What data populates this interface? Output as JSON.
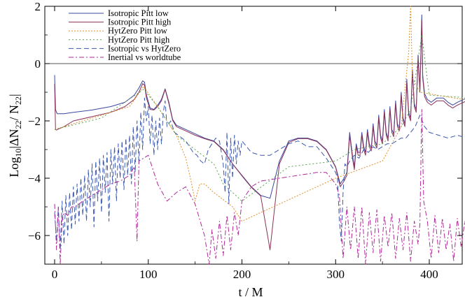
{
  "chart_data": {
    "type": "line",
    "xlabel": "t / M",
    "ylabel_parts": {
      "log": "Log",
      "log_sub": "10",
      "delta_n": "|ΔN",
      "num_sub": "22",
      "slash_n": "/ N",
      "den_sub": "22",
      "close": "|"
    },
    "xlim": [
      0,
      450
    ],
    "ylim": [
      -7,
      2
    ],
    "x_ticks": [
      0,
      100,
      200,
      300,
      400
    ],
    "x_tick_labels": [
      "0",
      "100",
      "200",
      "300",
      "400"
    ],
    "y_ticks": [
      2,
      0,
      -2,
      -4,
      -6
    ],
    "y_tick_labels": [
      "2",
      "0",
      "−2",
      "−4",
      "−6"
    ],
    "zero_line": true,
    "legend_position": "top-left",
    "series": [
      {
        "name": "Isotropic Pitt  low",
        "color": "#3a48a0",
        "dash": "solid",
        "x": [
          0,
          1,
          2,
          3,
          10,
          20,
          40,
          60,
          75,
          85,
          90,
          94,
          96,
          98,
          102,
          106,
          110,
          114,
          118,
          122,
          126,
          130,
          140,
          150,
          160,
          170,
          180,
          190,
          200,
          210,
          220,
          230,
          240,
          250,
          260,
          270,
          280,
          290,
          300,
          305,
          309,
          312,
          315,
          318,
          320,
          322,
          324,
          326,
          328,
          330,
          332,
          334,
          336,
          338,
          340,
          342,
          344,
          346,
          348,
          350,
          352,
          354,
          356,
          358,
          360,
          362,
          364,
          366,
          368,
          370,
          372,
          374,
          376,
          378,
          380,
          382,
          384,
          386,
          388,
          390,
          392,
          393,
          395,
          398,
          402,
          408,
          415,
          420,
          425,
          430,
          440,
          445
        ],
        "y": [
          -0.4,
          -1.6,
          -1.7,
          -1.75,
          -1.75,
          -1.7,
          -1.62,
          -1.5,
          -1.35,
          -1.1,
          -0.85,
          -0.6,
          -0.65,
          -1.1,
          -1.55,
          -1.6,
          -1.45,
          -1.25,
          -0.88,
          -1.35,
          -1.95,
          -2.15,
          -2.3,
          -2.45,
          -2.6,
          -2.7,
          -3.0,
          -3.5,
          -3.9,
          -4.3,
          -4.6,
          -4.7,
          -3.4,
          -2.7,
          -2.6,
          -2.6,
          -2.7,
          -3.0,
          -3.6,
          -4.2,
          -4.0,
          -3.8,
          -2.4,
          -3.2,
          -3.6,
          -2.8,
          -3.1,
          -3.1,
          -2.4,
          -2.9,
          -3.1,
          -2.3,
          -2.8,
          -2.95,
          -2.1,
          -2.7,
          -2.85,
          -1.8,
          -2.5,
          -2.7,
          -1.6,
          -2.4,
          -2.6,
          -1.5,
          -2.3,
          -2.45,
          -1.3,
          -2.1,
          -2.25,
          -1.0,
          -1.9,
          -2.1,
          -0.55,
          -1.7,
          -1.9,
          -0.2,
          -1.4,
          -1.6,
          0.3,
          -0.9,
          1.7,
          -0.4,
          -1.05,
          -1.25,
          -1.35,
          -1.2,
          -1.2,
          -1.35,
          -1.45,
          -1.35,
          -1.2,
          -1.15
        ]
      },
      {
        "name": "Isotropic Pitt  high",
        "color": "#8a3058",
        "dash": "solid",
        "x": [
          0,
          1,
          2,
          3,
          10,
          20,
          40,
          60,
          75,
          85,
          90,
          94,
          96,
          98,
          102,
          106,
          110,
          114,
          118,
          122,
          126,
          130,
          140,
          150,
          160,
          170,
          180,
          190,
          200,
          210,
          220,
          230,
          240,
          250,
          260,
          270,
          280,
          290,
          300,
          305,
          309,
          312,
          315,
          318,
          320,
          322,
          324,
          326,
          328,
          330,
          332,
          334,
          336,
          338,
          340,
          342,
          344,
          346,
          348,
          350,
          352,
          354,
          356,
          358,
          360,
          362,
          364,
          366,
          368,
          370,
          372,
          374,
          376,
          378,
          380,
          382,
          384,
          386,
          388,
          390,
          392,
          393,
          395,
          398,
          402,
          408,
          415,
          420,
          425,
          430,
          440,
          445
        ],
        "y": [
          -0.7,
          -2.3,
          -2.32,
          -2.3,
          -2.2,
          -2.0,
          -1.85,
          -1.7,
          -1.5,
          -1.25,
          -1.0,
          -0.7,
          -0.75,
          -1.2,
          -1.6,
          -1.62,
          -1.5,
          -1.3,
          -0.9,
          -1.4,
          -1.98,
          -2.2,
          -2.35,
          -2.5,
          -2.62,
          -2.72,
          -3.02,
          -3.5,
          -3.92,
          -4.32,
          -4.62,
          -6.5,
          -3.5,
          -2.75,
          -2.62,
          -2.62,
          -2.72,
          -3.02,
          -3.62,
          -4.3,
          -4.1,
          -3.9,
          -2.5,
          -3.3,
          -3.7,
          -2.9,
          -3.2,
          -3.2,
          -2.5,
          -3.0,
          -3.2,
          -2.4,
          -2.9,
          -3.05,
          -2.2,
          -2.8,
          -2.95,
          -1.9,
          -2.6,
          -2.8,
          -1.7,
          -2.5,
          -2.7,
          -1.6,
          -2.4,
          -2.55,
          -1.4,
          -2.2,
          -2.35,
          -1.1,
          -2.0,
          -2.2,
          -0.65,
          -1.8,
          -2.0,
          -0.3,
          -1.5,
          -1.7,
          0.2,
          -1.0,
          1.5,
          -0.5,
          -1.15,
          -1.35,
          -1.45,
          -1.3,
          -1.3,
          -1.45,
          -1.55,
          -1.45,
          -1.3,
          -1.25
        ]
      },
      {
        "name": "HytZero Pitt  low",
        "color": "#e0902a",
        "dash": "2,2",
        "x": [
          0,
          10,
          40,
          80,
          95,
          110,
          130,
          140,
          145,
          150,
          155,
          160,
          170,
          190,
          200,
          300,
          350,
          370,
          378,
          380,
          382,
          390,
          445
        ],
        "y": [
          -2.3,
          -2.2,
          -1.9,
          -1.5,
          -0.8,
          -1.5,
          -2.5,
          -3.3,
          -4.0,
          -4.8,
          -4.2,
          -4.2,
          -4.5,
          -5.0,
          -5.5,
          -4.0,
          -3.4,
          -2.2,
          0.4,
          2.0,
          -0.5,
          -1.0,
          -1.3
        ]
      },
      {
        "name": "HytZero Pitt  high",
        "color": "#5aa050",
        "dash": "2,3",
        "x": [
          0,
          50,
          95,
          110,
          130,
          150,
          170,
          180,
          200,
          250,
          300,
          320,
          350,
          370,
          380,
          392,
          400,
          445
        ],
        "y": [
          -2.3,
          -1.9,
          -0.9,
          -1.5,
          -2.5,
          -3.0,
          -3.5,
          -4.2,
          -4.8,
          -3.6,
          -3.4,
          -3.0,
          -2.8,
          -2.2,
          -1.6,
          1.0,
          -1.1,
          -1.2
        ]
      },
      {
        "name": "Isotropic vs HytZero",
        "color": "#3a58b0",
        "dash": "7,4",
        "x": [
          0,
          2,
          4,
          6,
          8,
          10,
          12,
          14,
          16,
          18,
          20,
          22,
          24,
          26,
          28,
          30,
          32,
          34,
          36,
          38,
          40,
          42,
          44,
          46,
          48,
          50,
          52,
          54,
          56,
          58,
          60,
          62,
          64,
          66,
          68,
          70,
          72,
          74,
          76,
          78,
          80,
          82,
          84,
          86,
          88,
          90,
          92,
          94,
          96,
          98,
          100,
          102,
          104,
          106,
          108,
          110,
          112,
          114,
          116,
          118,
          120,
          124,
          128,
          132,
          136,
          140,
          144,
          148,
          152,
          156,
          160,
          164,
          168,
          172,
          176,
          180,
          182,
          184,
          186,
          188,
          190,
          192,
          194,
          196,
          198,
          200,
          210,
          220,
          230,
          240,
          250,
          260,
          270,
          280,
          290,
          300,
          302,
          304,
          306,
          308,
          310,
          312,
          315,
          320,
          325,
          330,
          335,
          340,
          345,
          350,
          355,
          360,
          365,
          370,
          375,
          380,
          385,
          390,
          395,
          400,
          410,
          420,
          430,
          440,
          445
        ],
        "y": [
          -5.2,
          -6.2,
          -5.0,
          -6.5,
          -4.8,
          -6.3,
          -4.6,
          -6.0,
          -4.5,
          -5.8,
          -4.3,
          -5.6,
          -4.2,
          -5.5,
          -4.0,
          -5.3,
          -3.9,
          -5.5,
          -3.7,
          -5.0,
          -3.5,
          -5.7,
          -3.4,
          -4.8,
          -3.3,
          -5.2,
          -3.2,
          -4.5,
          -3.1,
          -5.5,
          -3.0,
          -4.2,
          -2.9,
          -4.8,
          -2.8,
          -4.0,
          -2.7,
          -4.4,
          -2.6,
          -3.9,
          -2.5,
          -4.2,
          -2.2,
          -3.8,
          -2.0,
          -3.5,
          -1.7,
          -3.0,
          -1.2,
          -2.0,
          -1.5,
          -2.8,
          -1.8,
          -3.2,
          -2.0,
          -3.0,
          -1.9,
          -2.8,
          -1.7,
          -1.3,
          -2.2,
          -2.0,
          -2.4,
          -2.5,
          -2.6,
          -2.7,
          -2.9,
          -3.1,
          -3.2,
          -3.4,
          -3.5,
          -3.0,
          -2.8,
          -2.6,
          -2.7,
          -3.5,
          -4.5,
          -2.4,
          -4.9,
          -2.6,
          -4.0,
          -2.5,
          -3.5,
          -2.7,
          -3.2,
          -2.7,
          -3.1,
          -3.2,
          -3.2,
          -3.0,
          -2.8,
          -2.7,
          -2.9,
          -2.9,
          -3.3,
          -3.8,
          -4.0,
          -5.5,
          -6.2,
          -4.5,
          -3.5,
          -3.6,
          -3.4,
          -3.2,
          -3.3,
          -3.0,
          -3.1,
          -2.9,
          -3.0,
          -2.9,
          -2.8,
          -2.8,
          -2.7,
          -2.6,
          -2.6,
          -2.4,
          -2.2,
          -1.8,
          -2.2,
          -2.4,
          -2.5,
          -2.6,
          -2.5,
          -2.6,
          -2.5
        ]
      },
      {
        "name": "Inertial  vs  worldtube",
        "color": "#b02898",
        "dash": "7,3,2,3",
        "x": [
          0,
          2,
          4,
          6,
          8,
          10,
          14,
          18,
          22,
          26,
          30,
          40,
          50,
          60,
          70,
          80,
          85,
          88,
          90,
          95,
          100,
          110,
          120,
          130,
          140,
          150,
          160,
          165,
          168,
          172,
          176,
          180,
          184,
          188,
          192,
          196,
          200,
          210,
          220,
          240,
          260,
          280,
          290,
          300,
          304,
          308,
          312,
          316,
          320,
          324,
          328,
          332,
          336,
          340,
          344,
          348,
          352,
          356,
          360,
          364,
          368,
          372,
          376,
          380,
          384,
          388,
          390,
          392,
          394,
          398,
          402,
          406,
          410,
          414,
          418,
          422,
          426,
          430,
          434,
          438,
          442,
          445
        ],
        "y": [
          -4.9,
          -6.5,
          -5.0,
          -7.0,
          -5.4,
          -5.2,
          -5.3,
          -5.0,
          -5.0,
          -4.9,
          -4.8,
          -4.6,
          -4.4,
          -4.2,
          -4.1,
          -3.9,
          -3.6,
          -6.2,
          -3.4,
          -3.3,
          -3.2,
          -4.2,
          -4.8,
          -4.5,
          -4.3,
          -4.9,
          -6.0,
          -7.0,
          -5.8,
          -6.8,
          -5.5,
          -6.7,
          -5.3,
          -6.5,
          -5.2,
          -6.0,
          -4.8,
          -4.3,
          -4.1,
          -4.0,
          -3.9,
          -3.8,
          -3.8,
          -4.2,
          -4.6,
          -6.8,
          -5.0,
          -6.5,
          -5.0,
          -6.8,
          -5.0,
          -7.0,
          -5.2,
          -6.6,
          -5.1,
          -6.9,
          -5.3,
          -6.4,
          -5.2,
          -6.8,
          -5.4,
          -6.5,
          -5.2,
          -6.9,
          -5.5,
          -6.3,
          -5.6,
          -1.6,
          -4.8,
          -5.5,
          -6.8,
          -5.3,
          -6.6,
          -5.4,
          -6.5,
          -5.6,
          -6.9,
          -5.4,
          -6.4,
          -5.5,
          -6.6,
          -5.5
        ]
      }
    ]
  }
}
